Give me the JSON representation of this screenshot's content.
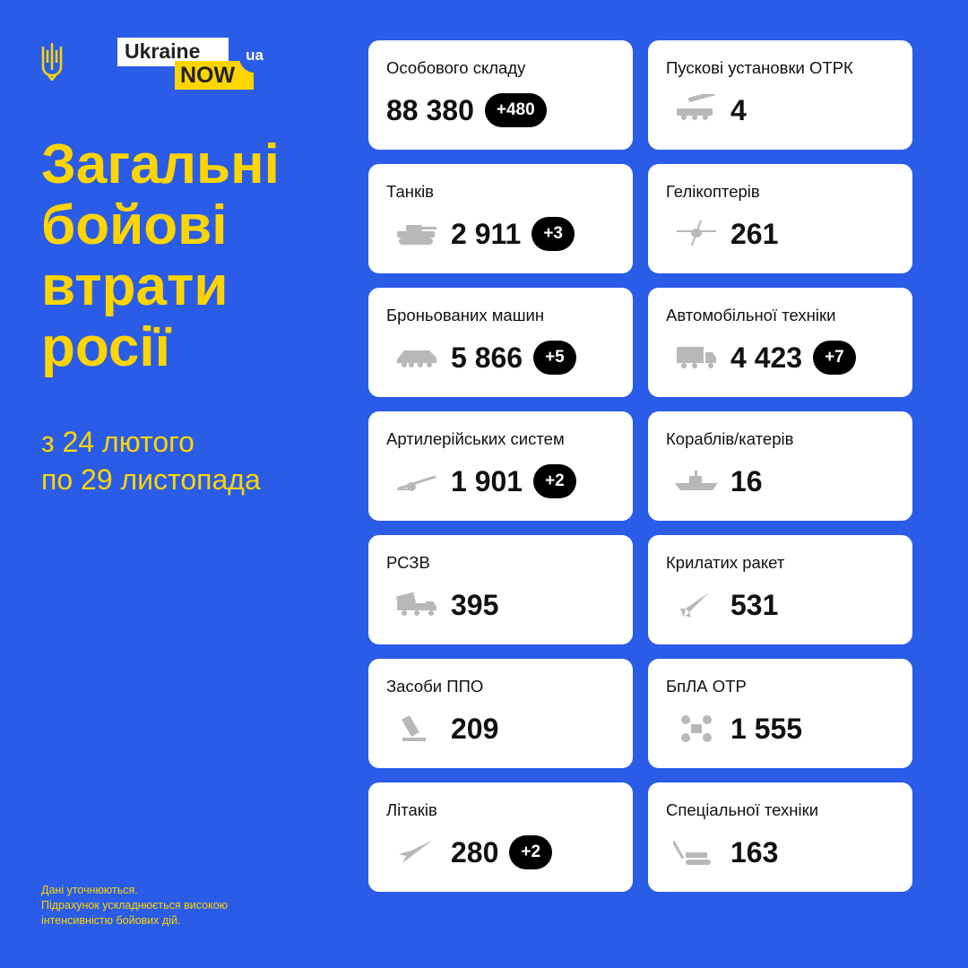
{
  "logo": {
    "ukraine": "Ukraine",
    "now": "NOW",
    "ua": "ua"
  },
  "title": [
    "Загальні",
    "бойові",
    "втрати",
    "росії"
  ],
  "period": [
    "з 24 лютого",
    "по 29 листопада"
  ],
  "note": [
    "Дані уточнюються.",
    "Підрахунок ускладнюється високою",
    "інтенсивністю бойових дій."
  ],
  "colors": {
    "background": "#2a5ce8",
    "accent": "#ffd500",
    "badge": "#000000",
    "icon": "#b8b8b8"
  },
  "cards": [
    {
      "label": "Особового складу",
      "value": "88 380",
      "delta": "+480",
      "icon": ""
    },
    {
      "label": "Пускові установки ОТРК",
      "value": "4",
      "delta": "",
      "icon": "missile-launcher-icon"
    },
    {
      "label": "Танків",
      "value": "2 911",
      "delta": "+3",
      "icon": "tank-icon"
    },
    {
      "label": "Гелікоптерів",
      "value": "261",
      "delta": "",
      "icon": "helicopter-icon"
    },
    {
      "label": "Броньованих машин",
      "value": "5 866",
      "delta": "+5",
      "icon": "apc-icon"
    },
    {
      "label": "Автомобільної техніки",
      "value": "4 423",
      "delta": "+7",
      "icon": "truck-icon"
    },
    {
      "label": "Артилерійських систем",
      "value": "1 901",
      "delta": "+2",
      "icon": "artillery-icon"
    },
    {
      "label": "Кораблів/катерів",
      "value": "16",
      "delta": "",
      "icon": "ship-icon"
    },
    {
      "label": "РСЗВ",
      "value": "395",
      "delta": "",
      "icon": "mlrs-icon"
    },
    {
      "label": "Крилатих ракет",
      "value": "531",
      "delta": "",
      "icon": "cruise-missile-icon"
    },
    {
      "label": "Засоби ППО",
      "value": "209",
      "delta": "",
      "icon": "air-defense-icon"
    },
    {
      "label": "БпЛА ОТР",
      "value": "1 555",
      "delta": "",
      "icon": "drone-icon"
    },
    {
      "label": "Літаків",
      "value": "280",
      "delta": "+2",
      "icon": "plane-icon"
    },
    {
      "label": "Спеціальної техніки",
      "value": "163",
      "delta": "",
      "icon": "special-vehicle-icon"
    }
  ]
}
